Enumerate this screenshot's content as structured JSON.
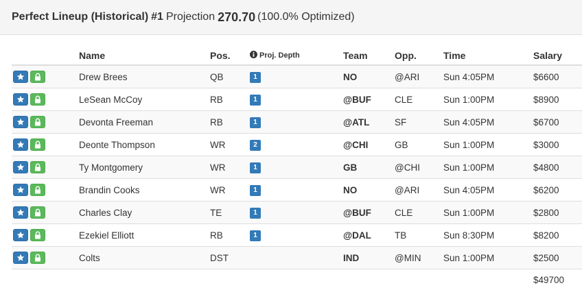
{
  "header": {
    "title": "Perfect Lineup (Historical)",
    "rank": "#1",
    "projection_label": "Projection",
    "projection_value": "270.70",
    "optimized": "(100.0% Optimized)"
  },
  "columns": {
    "name": "Name",
    "pos": "Pos.",
    "depth": "Proj. Depth",
    "team": "Team",
    "opp": "Opp.",
    "time": "Time",
    "salary": "Salary"
  },
  "icons": {
    "star": "star-icon",
    "lock": "lock-icon",
    "info": "info-icon"
  },
  "colors": {
    "star_button": "#337ab7",
    "lock_button": "#5cb85c",
    "depth_badge": "#337ab7"
  },
  "players": [
    {
      "name": "Drew Brees",
      "pos": "QB",
      "depth": "1",
      "team": "NO",
      "opp": "@ARI",
      "time": "Sun 4:05PM",
      "salary": "$6600"
    },
    {
      "name": "LeSean McCoy",
      "pos": "RB",
      "depth": "1",
      "team": "@BUF",
      "opp": "CLE",
      "time": "Sun 1:00PM",
      "salary": "$8900"
    },
    {
      "name": "Devonta Freeman",
      "pos": "RB",
      "depth": "1",
      "team": "@ATL",
      "opp": "SF",
      "time": "Sun 4:05PM",
      "salary": "$6700"
    },
    {
      "name": "Deonte Thompson",
      "pos": "WR",
      "depth": "2",
      "team": "@CHI",
      "opp": "GB",
      "time": "Sun 1:00PM",
      "salary": "$3000"
    },
    {
      "name": "Ty Montgomery",
      "pos": "WR",
      "depth": "1",
      "team": "GB",
      "opp": "@CHI",
      "time": "Sun 1:00PM",
      "salary": "$4800"
    },
    {
      "name": "Brandin Cooks",
      "pos": "WR",
      "depth": "1",
      "team": "NO",
      "opp": "@ARI",
      "time": "Sun 4:05PM",
      "salary": "$6200"
    },
    {
      "name": "Charles Clay",
      "pos": "TE",
      "depth": "1",
      "team": "@BUF",
      "opp": "CLE",
      "time": "Sun 1:00PM",
      "salary": "$2800"
    },
    {
      "name": "Ezekiel Elliott",
      "pos": "RB",
      "depth": "1",
      "team": "@DAL",
      "opp": "TB",
      "time": "Sun 8:30PM",
      "salary": "$8200"
    },
    {
      "name": "Colts",
      "pos": "DST",
      "depth": "",
      "team": "IND",
      "opp": "@MIN",
      "time": "Sun 1:00PM",
      "salary": "$2500"
    }
  ],
  "total_salary": "$49700"
}
